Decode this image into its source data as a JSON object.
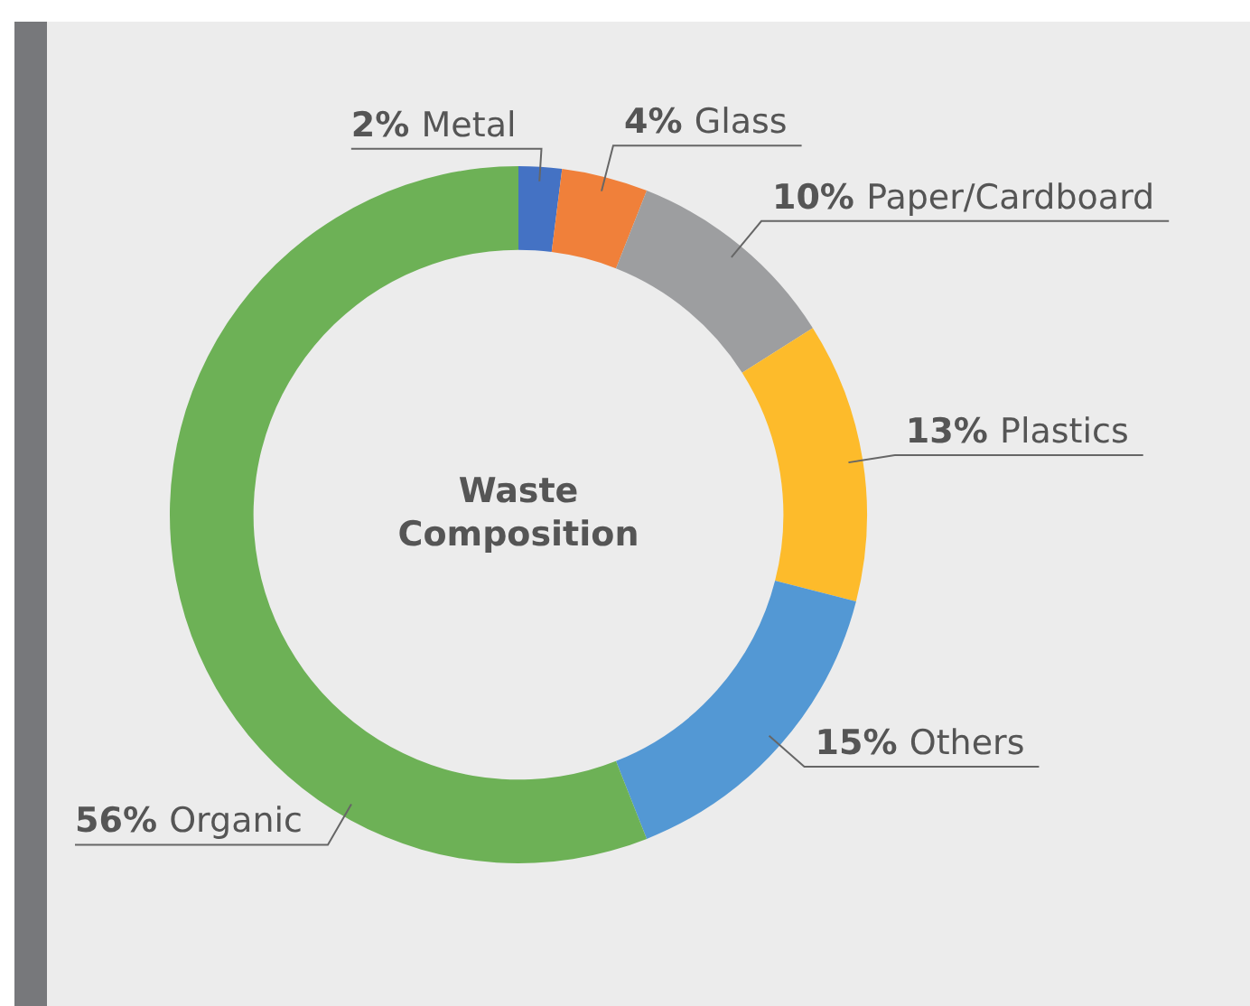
{
  "chart_data": {
    "type": "donut",
    "title": "Waste Composition",
    "categories": [
      "Metal",
      "Glass",
      "Paper/Cardboard",
      "Plastics",
      "Others",
      "Organic"
    ],
    "values": [
      2,
      4,
      10,
      13,
      15,
      56
    ],
    "colors": [
      "#4472c4",
      "#f0803a",
      "#9d9ea0",
      "#fdbb2b",
      "#5398d4",
      "#6db156"
    ],
    "value_labels": [
      "2%",
      "4%",
      "10%",
      "13%",
      "15%",
      "56%"
    ]
  }
}
